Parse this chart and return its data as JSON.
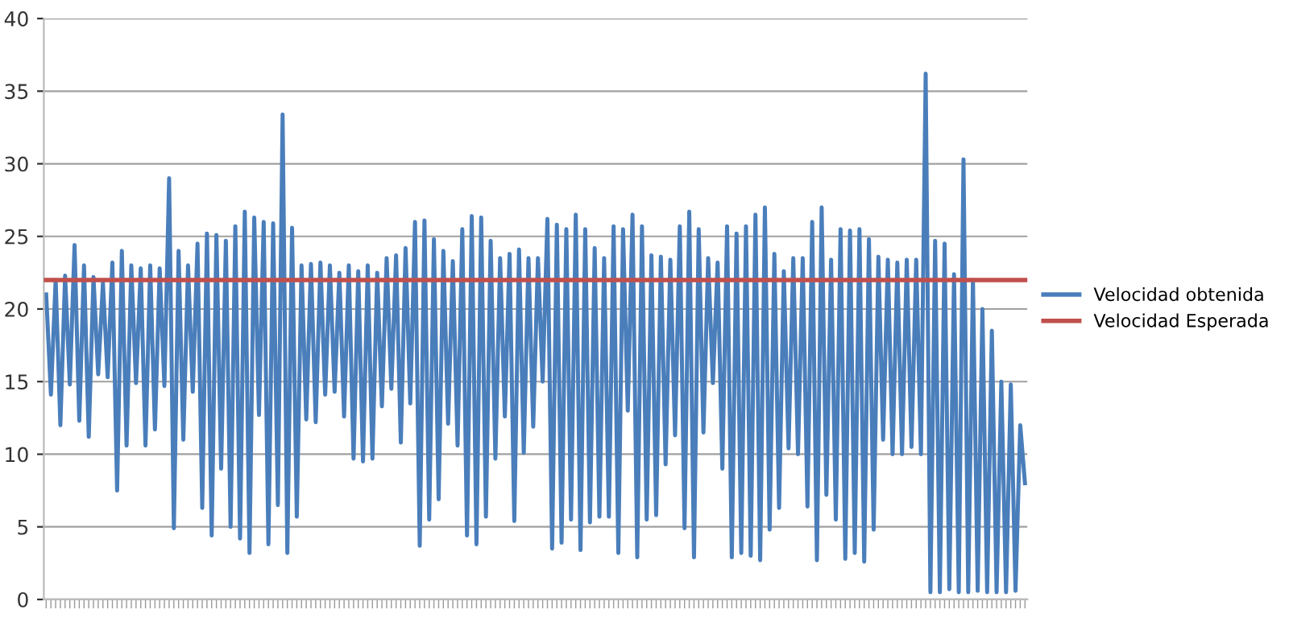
{
  "chart_data": {
    "type": "line",
    "categories": [
      null,
      null,
      null,
      null,
      null,
      null,
      null,
      null,
      null,
      null,
      null,
      null,
      null,
      null,
      null,
      null,
      null,
      null,
      null,
      null,
      null,
      null,
      null,
      null,
      null,
      null,
      null,
      null,
      null,
      null,
      null,
      null,
      null,
      null,
      null,
      null,
      null,
      null,
      null,
      null,
      null,
      null,
      null,
      null,
      null,
      null,
      null,
      null,
      null,
      null,
      null,
      null,
      null,
      null,
      null,
      null,
      null,
      null,
      null,
      null,
      null,
      null,
      null,
      null,
      null,
      null,
      null,
      null,
      null,
      null,
      null,
      null,
      null,
      null,
      null,
      null,
      null,
      null,
      null,
      null,
      null,
      null,
      null,
      null,
      null,
      null,
      null,
      null,
      null,
      null,
      null,
      null,
      null,
      null,
      null,
      null,
      null,
      null,
      null,
      null,
      null,
      null,
      null,
      null,
      null,
      null,
      null,
      null,
      null,
      null,
      null,
      null,
      null,
      null,
      null,
      null,
      null,
      null,
      null,
      null,
      null,
      null,
      null,
      null,
      null,
      null,
      null,
      null,
      null,
      null,
      null,
      null,
      null,
      null,
      null,
      null,
      null,
      null,
      null,
      null,
      null,
      null,
      null,
      null,
      null,
      null,
      null,
      null,
      null,
      null,
      null,
      null,
      null,
      null,
      null,
      null,
      null,
      null,
      null,
      null,
      null,
      null,
      null,
      null,
      null,
      null,
      null,
      null,
      null,
      null,
      null,
      null,
      null,
      null,
      null,
      null,
      null,
      null,
      null,
      null,
      null,
      null,
      null,
      null,
      null,
      null,
      null,
      null,
      null,
      null,
      null,
      null,
      null,
      null,
      null,
      null,
      null,
      null,
      null,
      null,
      null,
      null,
      null,
      null,
      null,
      null,
      null,
      null
    ],
    "series": [
      {
        "name": "Velocidad obtenida",
        "color": "#4a7ebb",
        "values": [
          21,
          14.1,
          22,
          12,
          22.3,
          14.8,
          24.4,
          12.3,
          23,
          11.2,
          22.2,
          15.5,
          21.8,
          15.3,
          23.2,
          7.5,
          24,
          10.6,
          23,
          14.9,
          22.8,
          10.6,
          23,
          11.7,
          22.8,
          14.7,
          29,
          4.9,
          24,
          11,
          23,
          14.3,
          24.5,
          6.3,
          25.2,
          4.4,
          25.1,
          9,
          24.7,
          5,
          25.7,
          4.2,
          26.7,
          3.2,
          26.3,
          12.7,
          26,
          3.8,
          25.9,
          6.5,
          33.4,
          3.2,
          25.6,
          5.7,
          23,
          12.4,
          23.1,
          12.2,
          23.2,
          14.1,
          23,
          14.3,
          22.5,
          12.6,
          23,
          9.7,
          22.6,
          9.5,
          23,
          9.7,
          22.5,
          13.3,
          23.5,
          14.5,
          23.7,
          10.8,
          24.2,
          13.5,
          26,
          3.7,
          26.1,
          5.5,
          24.8,
          6.9,
          24,
          12.1,
          23.3,
          10.6,
          25.5,
          4.4,
          26.4,
          3.8,
          26.3,
          5.7,
          24.7,
          9.7,
          23.5,
          12.6,
          23.8,
          5.4,
          24.1,
          10.1,
          23.5,
          11.9,
          23.5,
          15,
          26.2,
          3.5,
          25.8,
          3.9,
          25.5,
          5.5,
          26.5,
          3.4,
          25.5,
          5.3,
          24.2,
          5.7,
          23.5,
          5.7,
          25.7,
          3.2,
          25.5,
          13,
          26.5,
          2.9,
          25.7,
          5.5,
          23.7,
          5.8,
          23.6,
          9.3,
          23.4,
          11.3,
          25.7,
          4.9,
          26.7,
          2.9,
          25.5,
          11.5,
          23.5,
          14.9,
          23.2,
          9,
          25.7,
          2.9,
          25.2,
          3.2,
          25.7,
          3,
          26.5,
          2.7,
          27,
          4.8,
          23.8,
          6.3,
          22.6,
          10.4,
          23.5,
          10,
          23.5,
          6.4,
          26,
          2.7,
          27,
          7.2,
          23.4,
          5.5,
          25.5,
          2.8,
          25.4,
          3.2,
          25.5,
          2.6,
          24.8,
          4.8,
          23.6,
          11,
          23.4,
          10,
          23.2,
          10,
          23.4,
          10.5,
          23.4,
          10,
          36.2,
          0.5,
          24.7,
          0.5,
          24.5,
          0.7,
          22.4,
          0.5,
          30.3,
          0.5,
          22,
          0.6,
          20,
          0.5,
          18.5,
          0.5,
          15,
          0.5,
          14.8,
          0.6,
          12,
          8
        ]
      }
    ],
    "ref_lines": [
      {
        "axis": "y",
        "value": 22,
        "label": "Velocidad Esperada",
        "color": "#c0504d"
      }
    ],
    "ylim": [
      0,
      40
    ],
    "yticks": [
      0,
      5,
      10,
      15,
      20,
      25,
      30,
      35,
      40
    ],
    "grid": "y",
    "legend": "right",
    "marker": "none",
    "line_style": "solid"
  }
}
